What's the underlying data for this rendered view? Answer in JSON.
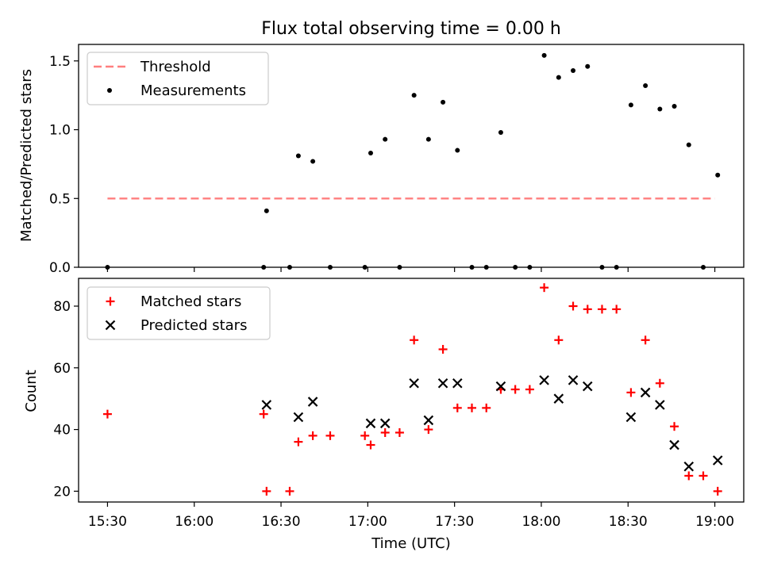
{
  "colors": {
    "threshold": "#ff7f7f",
    "measurement": "#000000",
    "matched": "#ff0000",
    "predicted": "#000000"
  },
  "chart_data": [
    {
      "type": "scatter",
      "title": "Flux total observing time = 0.00 h",
      "xlabel": "",
      "ylabel": "Matched/Predicted stars",
      "x_range": [
        "15:20",
        "19:10"
      ],
      "ylim": [
        0,
        1.62
      ],
      "yticks": [
        "0.0",
        "0.5",
        "1.0",
        "1.5"
      ],
      "legend": {
        "placement": "top-left",
        "entries": [
          {
            "key": "threshold",
            "label": "Threshold"
          },
          {
            "key": "measurements",
            "label": "Measurements"
          }
        ]
      },
      "threshold": {
        "name": "Threshold",
        "value": 0.5,
        "x": [
          "15:30",
          "19:00"
        ],
        "style": "dashed"
      },
      "series": [
        {
          "name": "Measurements",
          "marker": "dot",
          "points": [
            [
              "15:30",
              0.0
            ],
            [
              "16:24",
              0.0
            ],
            [
              "16:25",
              0.41
            ],
            [
              "16:33",
              0.0
            ],
            [
              "16:36",
              0.81
            ],
            [
              "16:41",
              0.77
            ],
            [
              "16:47",
              0.0
            ],
            [
              "16:59",
              0.0
            ],
            [
              "17:01",
              0.83
            ],
            [
              "17:06",
              0.93
            ],
            [
              "17:11",
              0.0
            ],
            [
              "17:16",
              1.25
            ],
            [
              "17:21",
              0.93
            ],
            [
              "17:26",
              1.2
            ],
            [
              "17:31",
              0.85
            ],
            [
              "17:36",
              0.0
            ],
            [
              "17:41",
              0.0
            ],
            [
              "17:46",
              0.98
            ],
            [
              "17:51",
              0.0
            ],
            [
              "17:56",
              0.0
            ],
            [
              "18:01",
              1.54
            ],
            [
              "18:06",
              1.38
            ],
            [
              "18:11",
              1.43
            ],
            [
              "18:16",
              1.46
            ],
            [
              "18:21",
              0.0
            ],
            [
              "18:26",
              0.0
            ],
            [
              "18:31",
              1.18
            ],
            [
              "18:36",
              1.32
            ],
            [
              "18:41",
              1.15
            ],
            [
              "18:46",
              1.17
            ],
            [
              "18:51",
              0.89
            ],
            [
              "18:56",
              0.0
            ],
            [
              "19:01",
              0.67
            ]
          ]
        }
      ]
    },
    {
      "type": "scatter",
      "title": "",
      "xlabel": "Time (UTC)",
      "ylabel": "Count",
      "x_range": [
        "15:20",
        "19:10"
      ],
      "xticks": [
        "15:30",
        "16:00",
        "16:30",
        "17:00",
        "17:30",
        "18:00",
        "18:30",
        "19:00"
      ],
      "ylim": [
        16.5,
        89
      ],
      "yticks": [
        "20",
        "40",
        "60",
        "80"
      ],
      "legend": {
        "placement": "top-left",
        "entries": [
          {
            "key": "matched",
            "label": "Matched stars"
          },
          {
            "key": "predicted",
            "label": "Predicted stars"
          }
        ]
      },
      "series": [
        {
          "name": "Matched stars",
          "marker": "plus",
          "points": [
            [
              "15:30",
              45
            ],
            [
              "16:24",
              45
            ],
            [
              "16:25",
              20
            ],
            [
              "16:33",
              20
            ],
            [
              "16:36",
              36
            ],
            [
              "16:41",
              38
            ],
            [
              "16:47",
              38
            ],
            [
              "16:59",
              38
            ],
            [
              "17:01",
              35
            ],
            [
              "17:06",
              39
            ],
            [
              "17:11",
              39
            ],
            [
              "17:16",
              69
            ],
            [
              "17:21",
              40
            ],
            [
              "17:26",
              66
            ],
            [
              "17:31",
              47
            ],
            [
              "17:36",
              47
            ],
            [
              "17:41",
              47
            ],
            [
              "17:46",
              53
            ],
            [
              "17:51",
              53
            ],
            [
              "17:56",
              53
            ],
            [
              "18:01",
              86
            ],
            [
              "18:06",
              69
            ],
            [
              "18:11",
              80
            ],
            [
              "18:16",
              79
            ],
            [
              "18:21",
              79
            ],
            [
              "18:26",
              79
            ],
            [
              "18:31",
              52
            ],
            [
              "18:36",
              69
            ],
            [
              "18:41",
              55
            ],
            [
              "18:46",
              41
            ],
            [
              "18:51",
              25
            ],
            [
              "18:56",
              25
            ],
            [
              "19:01",
              20
            ]
          ]
        },
        {
          "name": "Predicted stars",
          "marker": "x",
          "points": [
            [
              "16:25",
              48
            ],
            [
              "16:36",
              44
            ],
            [
              "16:41",
              49
            ],
            [
              "17:01",
              42
            ],
            [
              "17:06",
              42
            ],
            [
              "17:16",
              55
            ],
            [
              "17:21",
              43
            ],
            [
              "17:26",
              55
            ],
            [
              "17:31",
              55
            ],
            [
              "17:46",
              54
            ],
            [
              "18:01",
              56
            ],
            [
              "18:06",
              50
            ],
            [
              "18:11",
              56
            ],
            [
              "18:16",
              54
            ],
            [
              "18:31",
              44
            ],
            [
              "18:36",
              52
            ],
            [
              "18:41",
              48
            ],
            [
              "18:46",
              35
            ],
            [
              "18:51",
              28
            ],
            [
              "19:01",
              30
            ]
          ]
        }
      ]
    }
  ]
}
